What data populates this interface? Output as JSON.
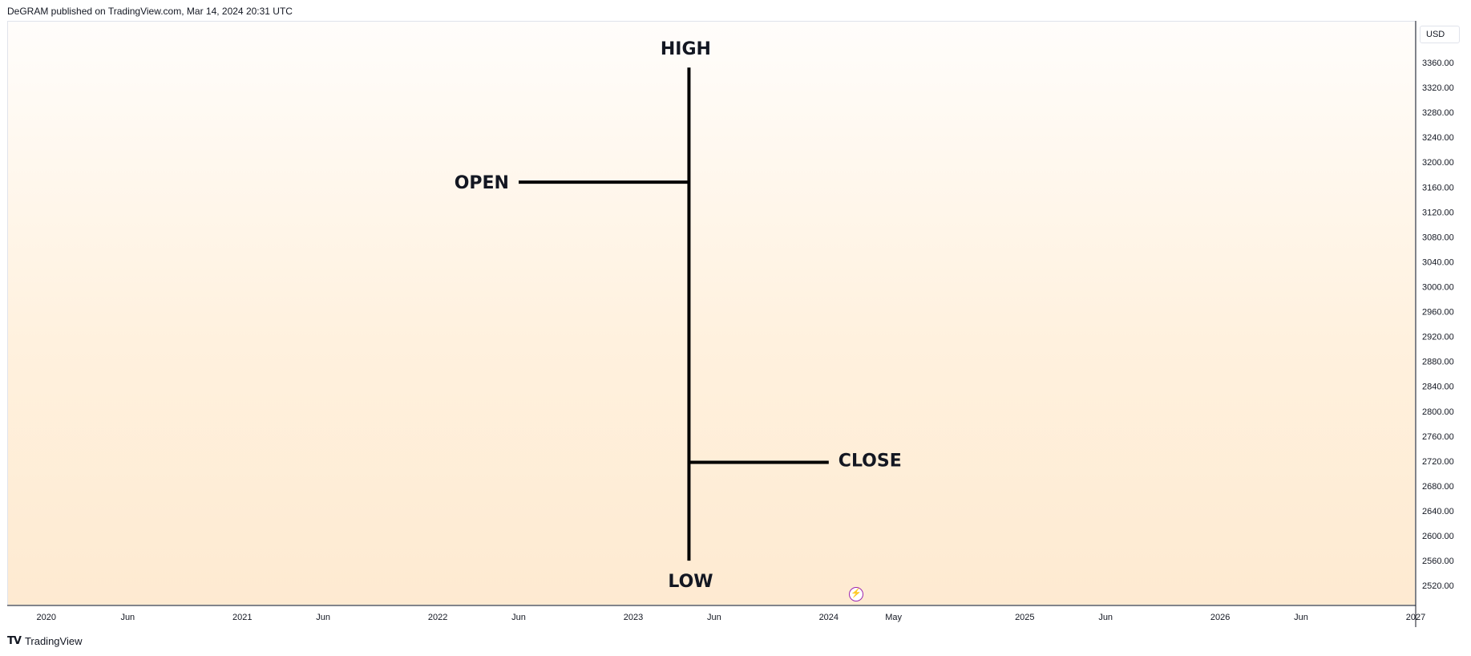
{
  "header": {
    "publish_line": "DeGRAM published on TradingView.com, Mar 14, 2024 20:31 UTC"
  },
  "price_scale": {
    "currency_label": "USD"
  },
  "footer": {
    "logo_text": "TradingView"
  },
  "colors": {
    "line": "#000000",
    "event_icon": "#9c27b0",
    "grid_border": "#e0e3eb"
  },
  "chart_data": {
    "type": "ohlc-diagram",
    "y_axis": {
      "ylim": [
        2488,
        3427
      ],
      "ticks": [
        3360,
        3320,
        3280,
        3240,
        3200,
        3160,
        3120,
        3080,
        3040,
        3000,
        2960,
        2920,
        2880,
        2840,
        2800,
        2760,
        2720,
        2680,
        2640,
        2600,
        2560,
        2520
      ],
      "tick_labels": [
        "3360.00",
        "3320.00",
        "3280.00",
        "3240.00",
        "3200.00",
        "3160.00",
        "3120.00",
        "3080.00",
        "3040.00",
        "3000.00",
        "2960.00",
        "2920.00",
        "2880.00",
        "2840.00",
        "2800.00",
        "2760.00",
        "2720.00",
        "2680.00",
        "2640.00",
        "2600.00",
        "2560.00",
        "2520.00"
      ]
    },
    "x_axis": {
      "xlim": [
        "2019-10-20",
        "2027-01-01"
      ],
      "ticks": [
        {
          "date": "2020-01-01",
          "label": "2020"
        },
        {
          "date": "2020-06-01",
          "label": "Jun"
        },
        {
          "date": "2021-01-01",
          "label": "2021"
        },
        {
          "date": "2021-06-01",
          "label": "Jun"
        },
        {
          "date": "2022-01-01",
          "label": "2022"
        },
        {
          "date": "2022-06-01",
          "label": "Jun"
        },
        {
          "date": "2023-01-01",
          "label": "2023"
        },
        {
          "date": "2023-06-01",
          "label": "Jun"
        },
        {
          "date": "2024-01-01",
          "label": "2024"
        },
        {
          "date": "2024-05-01",
          "label": "May"
        },
        {
          "date": "2025-01-01",
          "label": "2025"
        },
        {
          "date": "2025-06-01",
          "label": "Jun"
        },
        {
          "date": "2026-01-01",
          "label": "2026"
        },
        {
          "date": "2026-06-01",
          "label": "Jun"
        },
        {
          "date": "2027-01-01",
          "label": "2027"
        }
      ]
    },
    "bar": {
      "date": "2023-04-15",
      "open_start_date": "2022-06-01",
      "close_end_date": "2024-01-01",
      "high": 3352,
      "open": 3168,
      "close": 2718,
      "low": 2560
    },
    "labels": {
      "high": "HIGH",
      "open": "OPEN",
      "close": "CLOSE",
      "low": "LOW"
    }
  }
}
